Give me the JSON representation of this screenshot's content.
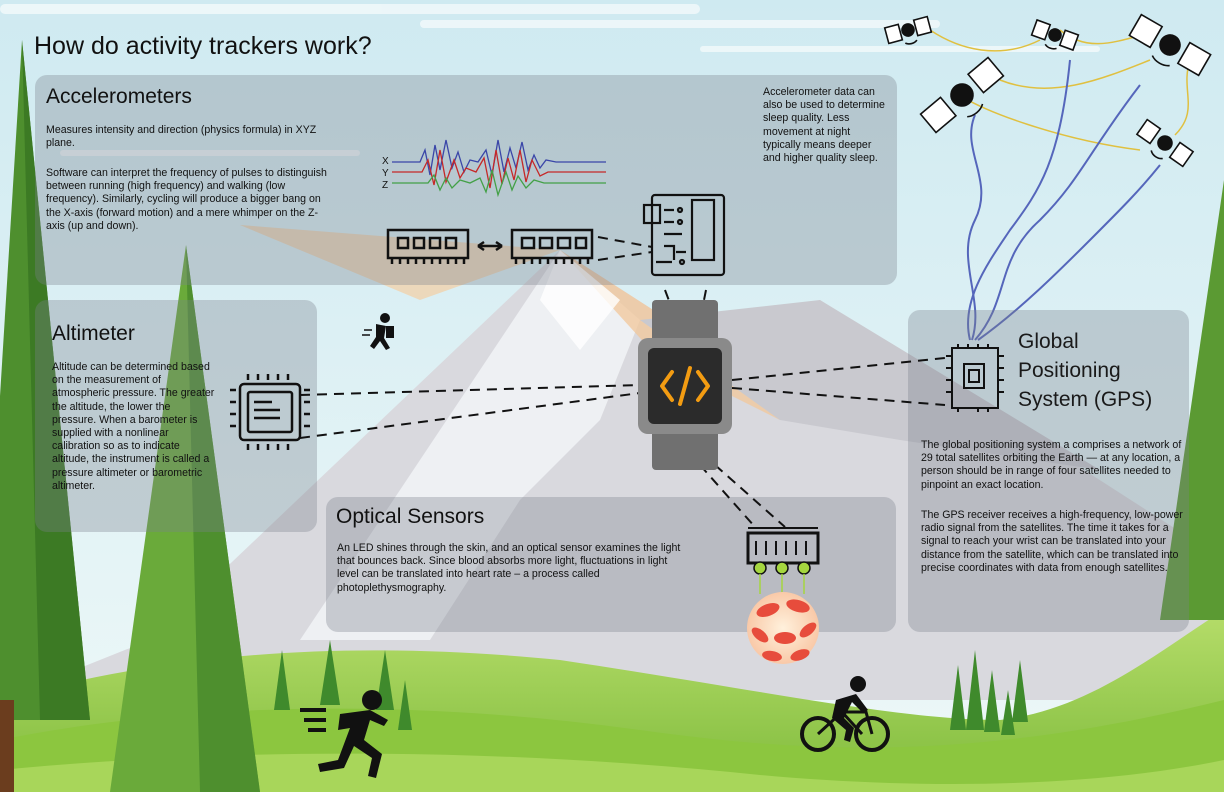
{
  "title": "How do activity trackers work?",
  "accelerometers": {
    "heading": "Accelerometers",
    "para1": "Measures intensity and direction (physics formula) in XYZ plane.",
    "para2": "Software can interpret the frequency of pulses to distinguish between running (high frequency) and walking (low frequency). Similarly, cycling will produce a bigger bang on the X-axis (forward motion) and a mere whimper on the Z-axis (up and down).",
    "axis_labels": [
      "X",
      "Y",
      "Z"
    ],
    "sleep_note": "Accelerometer data can also be used to determine sleep quality. Less movement at night typically means deeper and higher quality sleep."
  },
  "altimeter": {
    "heading": "Altimeter",
    "text": "Altitude can be determined based on the measurement of atmospheric pressure. The greater the altitude, the lower the pressure. When a barometer is supplied with a nonlinear calibration so as to indicate altitude, the instrument is called a pressure altimeter or barometric altimeter."
  },
  "optical": {
    "heading": "Optical Sensors",
    "text": "An LED shines through the skin, and an optical sensor examines the light that bounces back. Since blood absorbs more light, fluctuations in light level can be translated into heart rate – a process called photoplethysmography."
  },
  "gps": {
    "heading_lines": [
      "Global",
      "Positioning",
      "System (GPS)"
    ],
    "para1": "The global positioning system a comprises a network of 29 total satellites orbiting the Earth — at any location, a person should be in range of four satellites needed to pinpoint an exact location.",
    "para2": "The GPS receiver receives a high-frequency, low-power radio signal from the satellites. The time it takes for a signal to reach your wrist can be translated into your distance from the satellite, which can be translated into precise coordinates with data from enough satellites."
  },
  "icons": [
    "satellite-icon",
    "chip-icon",
    "circuit-board-icon",
    "memory-module-icon",
    "smartwatch-icon",
    "code-icon",
    "runner-icon",
    "cyclist-icon",
    "walker-icon",
    "led-sensor-icon",
    "blood-cells-icon",
    "tree-icon",
    "mountain-icon"
  ],
  "colors": {
    "sky": "#d7eef4",
    "grass": "#8cc63f",
    "dark_green": "#3f8a2c",
    "signal_x": "#3a46a8",
    "signal_y": "#c62828",
    "signal_z": "#43a047",
    "code_orange": "#f39c12",
    "satellite_wave": "#5566bb",
    "satellite_link": "#e0c040"
  }
}
